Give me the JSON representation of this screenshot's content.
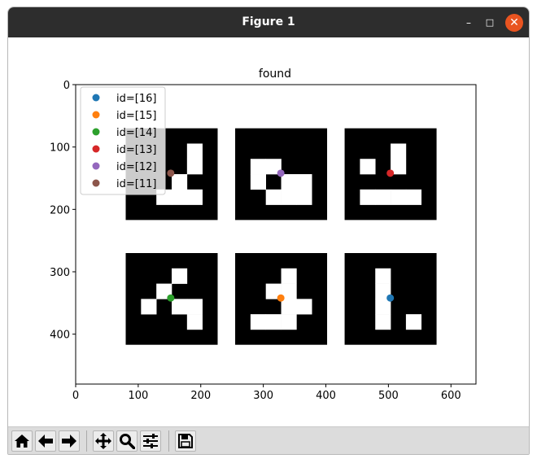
{
  "window": {
    "title": "Figure 1",
    "minimize_symbol": "–",
    "maximize_symbol": "□",
    "close_symbol": "✕"
  },
  "toolbar": {
    "buttons": [
      {
        "name": "home-icon",
        "label": "Home"
      },
      {
        "name": "back-icon",
        "label": "Back"
      },
      {
        "name": "forward-icon",
        "label": "Forward"
      },
      {
        "name": "pan-icon",
        "label": "Pan"
      },
      {
        "name": "zoom-icon",
        "label": "Zoom"
      },
      {
        "name": "configure-subplots-icon",
        "label": "Configure subplots"
      },
      {
        "name": "save-icon",
        "label": "Save"
      }
    ]
  },
  "chart_data": {
    "type": "scatter",
    "title": "found",
    "xlabel": "",
    "ylabel": "",
    "xlim": [
      0,
      640
    ],
    "ylim": [
      480,
      0
    ],
    "xticks": [
      0,
      100,
      200,
      300,
      400,
      500,
      600
    ],
    "yticks": [
      0,
      100,
      200,
      300,
      400
    ],
    "legend_position": "top-left",
    "grid": false,
    "background_image": {
      "description_colors": {
        "marker_black": "#000000",
        "cell_white": "#ffffff"
      },
      "markers": [
        {
          "x0": 80,
          "y0": 70,
          "cells": [
            [
              0,
              0,
              0,
              0,
              0,
              0
            ],
            [
              0,
              0,
              0,
              0,
              1,
              0
            ],
            [
              0,
              0,
              0,
              0,
              1,
              0
            ],
            [
              0,
              0,
              0,
              1,
              0,
              0
            ],
            [
              0,
              0,
              1,
              1,
              1,
              0
            ],
            [
              0,
              0,
              0,
              0,
              0,
              0
            ]
          ]
        },
        {
          "x0": 255,
          "y0": 70,
          "cells": [
            [
              0,
              0,
              0,
              0,
              0,
              0
            ],
            [
              0,
              0,
              0,
              0,
              0,
              0
            ],
            [
              0,
              1,
              1,
              0,
              0,
              0
            ],
            [
              0,
              1,
              0,
              1,
              1,
              0
            ],
            [
              0,
              0,
              1,
              1,
              1,
              0
            ],
            [
              0,
              0,
              0,
              0,
              0,
              0
            ]
          ]
        },
        {
          "x0": 430,
          "y0": 70,
          "cells": [
            [
              0,
              0,
              0,
              0,
              0,
              0
            ],
            [
              0,
              0,
              0,
              1,
              0,
              0
            ],
            [
              0,
              1,
              0,
              1,
              0,
              0
            ],
            [
              0,
              0,
              0,
              0,
              0,
              0
            ],
            [
              0,
              1,
              1,
              1,
              1,
              0
            ],
            [
              0,
              0,
              0,
              0,
              0,
              0
            ]
          ]
        },
        {
          "x0": 80,
          "y0": 270,
          "cells": [
            [
              0,
              0,
              0,
              0,
              0,
              0
            ],
            [
              0,
              0,
              0,
              1,
              0,
              0
            ],
            [
              0,
              0,
              1,
              0,
              0,
              0
            ],
            [
              0,
              1,
              0,
              1,
              1,
              0
            ],
            [
              0,
              0,
              0,
              0,
              1,
              0
            ],
            [
              0,
              0,
              0,
              0,
              0,
              0
            ]
          ]
        },
        {
          "x0": 255,
          "y0": 270,
          "cells": [
            [
              0,
              0,
              0,
              0,
              0,
              0
            ],
            [
              0,
              0,
              0,
              1,
              0,
              0
            ],
            [
              0,
              0,
              1,
              1,
              0,
              0
            ],
            [
              0,
              0,
              0,
              1,
              1,
              0
            ],
            [
              0,
              1,
              1,
              1,
              0,
              0
            ],
            [
              0,
              0,
              0,
              0,
              0,
              0
            ]
          ]
        },
        {
          "x0": 430,
          "y0": 270,
          "cells": [
            [
              0,
              0,
              0,
              0,
              0,
              0
            ],
            [
              0,
              0,
              1,
              0,
              0,
              0
            ],
            [
              0,
              0,
              1,
              0,
              0,
              0
            ],
            [
              0,
              0,
              1,
              0,
              0,
              0
            ],
            [
              0,
              0,
              1,
              0,
              1,
              0
            ],
            [
              0,
              0,
              0,
              0,
              0,
              0
            ]
          ]
        }
      ],
      "cell_size": 24.5
    },
    "series": [
      {
        "name": "id=[16]",
        "color": "#1f77b4",
        "x": [
          503
        ],
        "y": [
          342
        ]
      },
      {
        "name": "id=[15]",
        "color": "#ff7f0e",
        "x": [
          328
        ],
        "y": [
          342
        ]
      },
      {
        "name": "id=[14]",
        "color": "#2ca02c",
        "x": [
          152
        ],
        "y": [
          342
        ]
      },
      {
        "name": "id=[13]",
        "color": "#d62728",
        "x": [
          503
        ],
        "y": [
          142
        ]
      },
      {
        "name": "id=[12]",
        "color": "#9467bd",
        "x": [
          328
        ],
        "y": [
          142
        ]
      },
      {
        "name": "id=[11]",
        "color": "#8c564b",
        "x": [
          152
        ],
        "y": [
          142
        ]
      }
    ]
  }
}
